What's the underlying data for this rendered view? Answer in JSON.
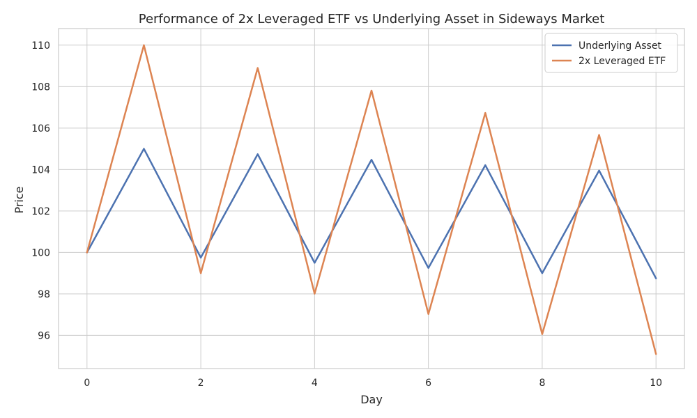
{
  "chart_data": {
    "type": "line",
    "title": "Performance of 2x Leveraged ETF vs Underlying Asset in Sideways Market",
    "xlabel": "Day",
    "ylabel": "Price",
    "x": [
      0,
      1,
      2,
      3,
      4,
      5,
      6,
      7,
      8,
      9,
      10
    ],
    "xlim": [
      -0.5,
      10.5
    ],
    "ylim": [
      94.4,
      110.8
    ],
    "xticks": [
      0,
      2,
      4,
      6,
      8,
      10
    ],
    "yticks": [
      96,
      98,
      100,
      102,
      104,
      106,
      108,
      110
    ],
    "xtick_labels": [
      "0",
      "2",
      "4",
      "6",
      "8",
      "10"
    ],
    "ytick_labels": [
      "96",
      "98",
      "100",
      "102",
      "104",
      "106",
      "108",
      "110"
    ],
    "grid": true,
    "legend_position": "top-right",
    "series": [
      {
        "name": "Underlying Asset",
        "color": "#4c72b0",
        "values": [
          100,
          105,
          99.75,
          104.74,
          99.5,
          104.47,
          99.25,
          104.21,
          99.0,
          103.95,
          98.75
        ]
      },
      {
        "name": "2x Leveraged ETF",
        "color": "#dd8452",
        "values": [
          100,
          110,
          99.0,
          108.9,
          98.01,
          107.81,
          97.03,
          106.73,
          96.06,
          105.67,
          95.1
        ]
      }
    ]
  }
}
